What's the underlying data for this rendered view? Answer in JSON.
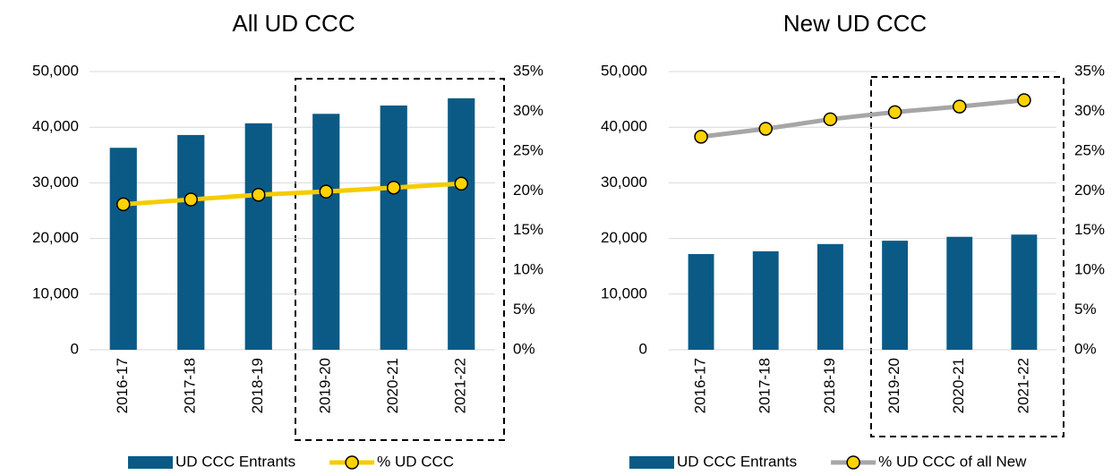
{
  "chart_data": [
    {
      "type": "bar",
      "title": "All UD CCC",
      "categories": [
        "2016-17",
        "2017-18",
        "2018-19",
        "2019-20",
        "2020-21",
        "2021-22"
      ],
      "series": [
        {
          "name": "UD CCC Entrants",
          "type": "bar",
          "color": "#0b5a86",
          "values": [
            36300,
            38600,
            40700,
            42400,
            43900,
            45200
          ]
        },
        {
          "name": "% UD CCC",
          "type": "line",
          "axis": "y2",
          "color": "#f5cc00",
          "marker_color": "#ffd200",
          "values": [
            18.3,
            18.9,
            19.5,
            19.9,
            20.4,
            20.9
          ]
        }
      ],
      "ylim": [
        0,
        50000
      ],
      "yticks": [
        0,
        {
          "value": 10000,
          "label": "10,000"
        },
        {
          "value": 20000,
          "label": "20,000"
        },
        {
          "value": 30000,
          "label": "30,000"
        },
        {
          "value": 40000,
          "label": "40,000"
        },
        {
          "value": 50000,
          "label": "50,000"
        }
      ],
      "y2lim": [
        0,
        35
      ],
      "y2ticks": [
        {
          "value": 0,
          "label": "0%"
        },
        {
          "value": 5,
          "label": "5%"
        },
        {
          "value": 10,
          "label": "10%"
        },
        {
          "value": 15,
          "label": "15%"
        },
        {
          "value": 20,
          "label": "20%"
        },
        {
          "value": 25,
          "label": "25%"
        },
        {
          "value": 30,
          "label": "30%"
        },
        {
          "value": 35,
          "label": "35%"
        }
      ],
      "grid": true,
      "legend": "bottom"
    },
    {
      "type": "bar",
      "title": "New UD CCC",
      "categories": [
        "2016-17",
        "2017-18",
        "2018-19",
        "2019-20",
        "2020-21",
        "2021-22"
      ],
      "series": [
        {
          "name": "UD CCC Entrants",
          "type": "bar",
          "color": "#0b5a86",
          "values": [
            17200,
            17700,
            19000,
            19600,
            20300,
            20700
          ]
        },
        {
          "name": "% UD CCC of all New",
          "type": "line",
          "axis": "y2",
          "color": "#a6a6a6",
          "marker_color": "#ffd200",
          "values": [
            26.8,
            27.8,
            29.0,
            29.9,
            30.6,
            31.4
          ]
        }
      ],
      "ylim": [
        0,
        50000
      ],
      "yticks": [
        0,
        {
          "value": 10000,
          "label": "10,000"
        },
        {
          "value": 20000,
          "label": "20,000"
        },
        {
          "value": 30000,
          "label": "30,000"
        },
        {
          "value": 40000,
          "label": "40,000"
        },
        {
          "value": 50000,
          "label": "50,000"
        }
      ],
      "y2lim": [
        0,
        35
      ],
      "y2ticks": [
        {
          "value": 0,
          "label": "0%"
        },
        {
          "value": 5,
          "label": "5%"
        },
        {
          "value": 10,
          "label": "10%"
        },
        {
          "value": 15,
          "label": "15%"
        },
        {
          "value": 20,
          "label": "20%"
        },
        {
          "value": 25,
          "label": "25%"
        },
        {
          "value": 30,
          "label": "30%"
        },
        {
          "value": 35,
          "label": "35%"
        }
      ],
      "grid": true,
      "legend": "bottom"
    }
  ]
}
